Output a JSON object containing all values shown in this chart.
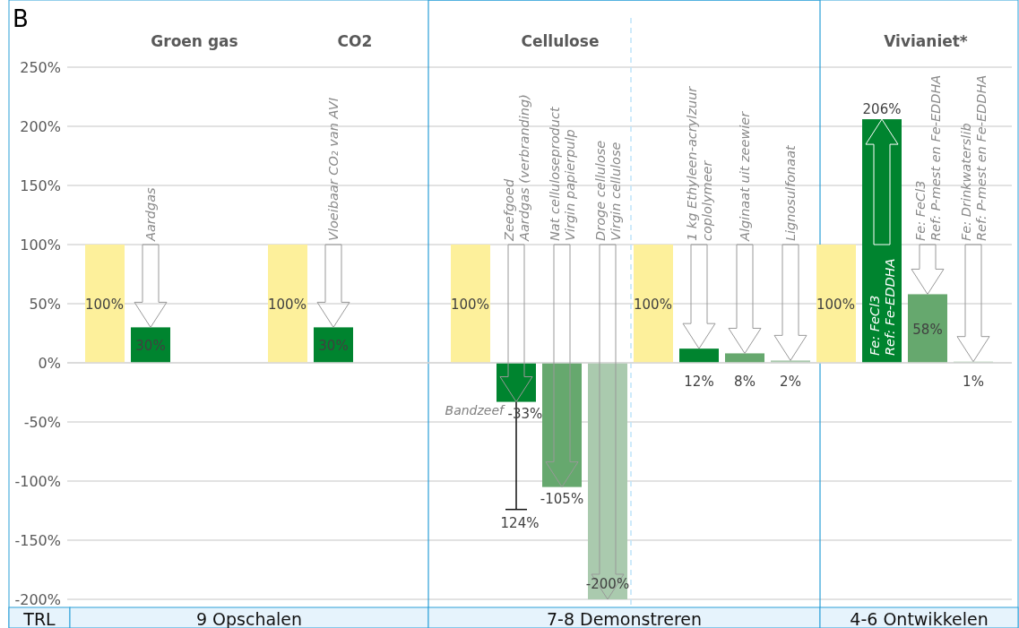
{
  "chart_data": {
    "type": "bar",
    "title": "B",
    "categories": [
      null,
      "Aardgas",
      null,
      null,
      null,
      "Vloeibaar CO₂ van AVI",
      null,
      null,
      null,
      "Zeefgoed\nAardgas (verbranding)",
      "Nat celluloseproduct\nVirgin papierpulp",
      "Droge cellulose\nVirgin cellulose",
      null,
      "1 kg Ethyleen-acrylzuur\ncoplolymeer",
      "Alginaat uit zeewier",
      "Lignosulfonaat",
      null,
      "Fe: FeCl3\nRef: Fe-EDDHA",
      "Fe: FeCl3\nRef: P-mest en Fe-EDDHA",
      "Fe: Drinkwaterslib\nRef: P-mest en Fe-EDDHA"
    ],
    "values": [
      100,
      30,
      null,
      null,
      100,
      30,
      null,
      null,
      100,
      -33,
      -105,
      -200,
      100,
      12,
      8,
      2,
      100,
      206,
      58,
      1
    ],
    "colors": [
      "#fdf09b",
      "#00842f",
      null,
      null,
      "#fdf09b",
      "#00842f",
      null,
      null,
      "#fdf09b",
      "#00842f",
      "#66a86e",
      "#aacaae",
      "#fdf09b",
      "#00842f",
      "#66a86e",
      "#aacaae",
      "#fdf09b",
      "#00842f",
      "#66a86e",
      "#aacaae"
    ],
    "value_labels": [
      "100%",
      "30%",
      null,
      null,
      "100%",
      "30%",
      null,
      null,
      "100%",
      "-33%",
      "-105%",
      "-200%",
      "100%",
      "12%",
      "8%",
      "2%",
      "100%",
      "206%",
      "58%",
      "1%"
    ],
    "errors": [
      null,
      null,
      null,
      null,
      null,
      null,
      null,
      null,
      null,
      [
        -124,
        -33
      ],
      null,
      null,
      null,
      null,
      null,
      null,
      null,
      null,
      null,
      null
    ],
    "ylim": [
      -200,
      250
    ],
    "yticks": [
      {
        "value": -200,
        "label": "-200%"
      },
      {
        "value": -150,
        "label": "-150%"
      },
      {
        "value": -100,
        "label": "-100%"
      },
      {
        "value": -50,
        "label": "-50%"
      },
      {
        "value": 0,
        "label": "0%"
      },
      {
        "value": 50,
        "label": "50%"
      },
      {
        "value": 100,
        "label": "100%"
      },
      {
        "value": 150,
        "label": "150%"
      },
      {
        "value": 200,
        "label": "200%"
      },
      {
        "value": 250,
        "label": "250%"
      }
    ],
    "grid": "y",
    "annotations": [
      "Groen gas",
      "CO2",
      "Cellulose",
      "Vivianiet*",
      "TRL",
      "9 Opschalen",
      "7-8 Demonstreren",
      "4-6 Ontwikkelen",
      "Bandzeef",
      {
        "text": "124%",
        "y": -124
      }
    ]
  }
}
